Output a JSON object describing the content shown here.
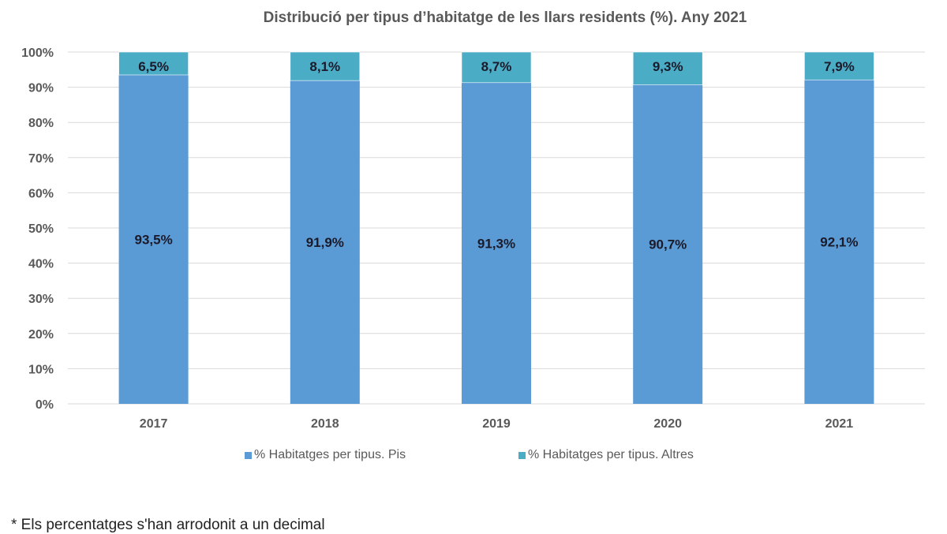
{
  "chart_data": {
    "type": "bar",
    "stacked": true,
    "title": "Distribució per tipus d’habitatge de les llars residents (%). Any  2021",
    "categories": [
      "2017",
      "2018",
      "2019",
      "2020",
      "2021"
    ],
    "series": [
      {
        "name": "% Habitatges per tipus. Pis",
        "values": [
          93.5,
          91.9,
          91.3,
          90.7,
          92.1
        ],
        "labels": [
          "93,5%",
          "91,9%",
          "91,3%",
          "90,7%",
          "92,1%"
        ],
        "color": "#5B9BD5"
      },
      {
        "name": "% Habitatges per tipus. Altres",
        "values": [
          6.5,
          8.1,
          8.7,
          9.3,
          7.9
        ],
        "labels": [
          "6,5%",
          "8,1%",
          "8,7%",
          "9,3%",
          "7,9%"
        ],
        "color": "#4BACC6"
      }
    ],
    "yticks": [
      "0%",
      "10%",
      "20%",
      "30%",
      "40%",
      "50%",
      "60%",
      "70%",
      "80%",
      "90%",
      "100%"
    ],
    "ylim": [
      0,
      100
    ],
    "grid": true,
    "legend": "bottom"
  },
  "footnote": "* Els percentatges s'han arrodonit a un decimal"
}
